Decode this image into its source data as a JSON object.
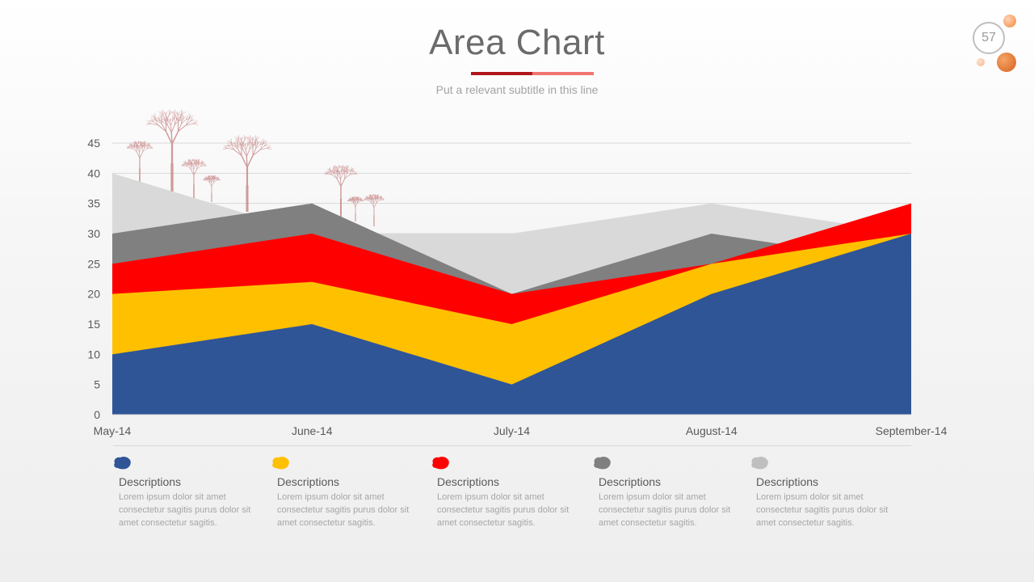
{
  "header": {
    "title": "Area Chart",
    "subtitle": "Put a relevant subtitle in this line",
    "page_number": "57",
    "accent_dark": "#b1151c",
    "accent_light": "#f07470"
  },
  "decoration": {
    "icon": "bare-tree-icon",
    "color": "#c98a8a"
  },
  "chart_data": {
    "type": "area",
    "stacked": false,
    "x": [
      "May-14",
      "June-14",
      "July-14",
      "August-14",
      "September-14"
    ],
    "ylim": [
      0,
      45
    ],
    "yticks": [
      0,
      5,
      10,
      15,
      20,
      25,
      30,
      35,
      40,
      45
    ],
    "grid": true,
    "series": [
      {
        "color": "#d9d9d9",
        "values": [
          40,
          30,
          30,
          35,
          30
        ]
      },
      {
        "color": "#808080",
        "values": [
          30,
          35,
          20,
          30,
          25
        ]
      },
      {
        "color": "#ff0000",
        "values": [
          25,
          30,
          20,
          25,
          35
        ]
      },
      {
        "color": "#ffc000",
        "values": [
          20,
          22,
          15,
          25,
          30
        ]
      },
      {
        "color": "#2f5597",
        "values": [
          10,
          15,
          5,
          20,
          30
        ]
      }
    ]
  },
  "legend": [
    {
      "color": "#2f5597",
      "title": "Descriptions",
      "text": "Lorem  ipsum dolor sit amet consectetur sagitis purus dolor sit amet consectetur sagitis."
    },
    {
      "color": "#ffc000",
      "title": "Descriptions",
      "text": "Lorem  ipsum dolor sit amet consectetur sagitis purus dolor sit amet consectetur sagitis."
    },
    {
      "color": "#ff0000",
      "title": "Descriptions",
      "text": "Lorem  ipsum dolor sit amet consectetur sagitis purus dolor sit amet consectetur sagitis."
    },
    {
      "color": "#808080",
      "title": "Descriptions",
      "text": "Lorem  ipsum dolor sit amet consectetur sagitis purus dolor sit amet consectetur sagitis."
    },
    {
      "color": "#bfbfbf",
      "title": "Descriptions",
      "text": "Lorem  ipsum dolor sit amet consectetur sagitis purus dolor sit amet consectetur sagitis."
    }
  ]
}
